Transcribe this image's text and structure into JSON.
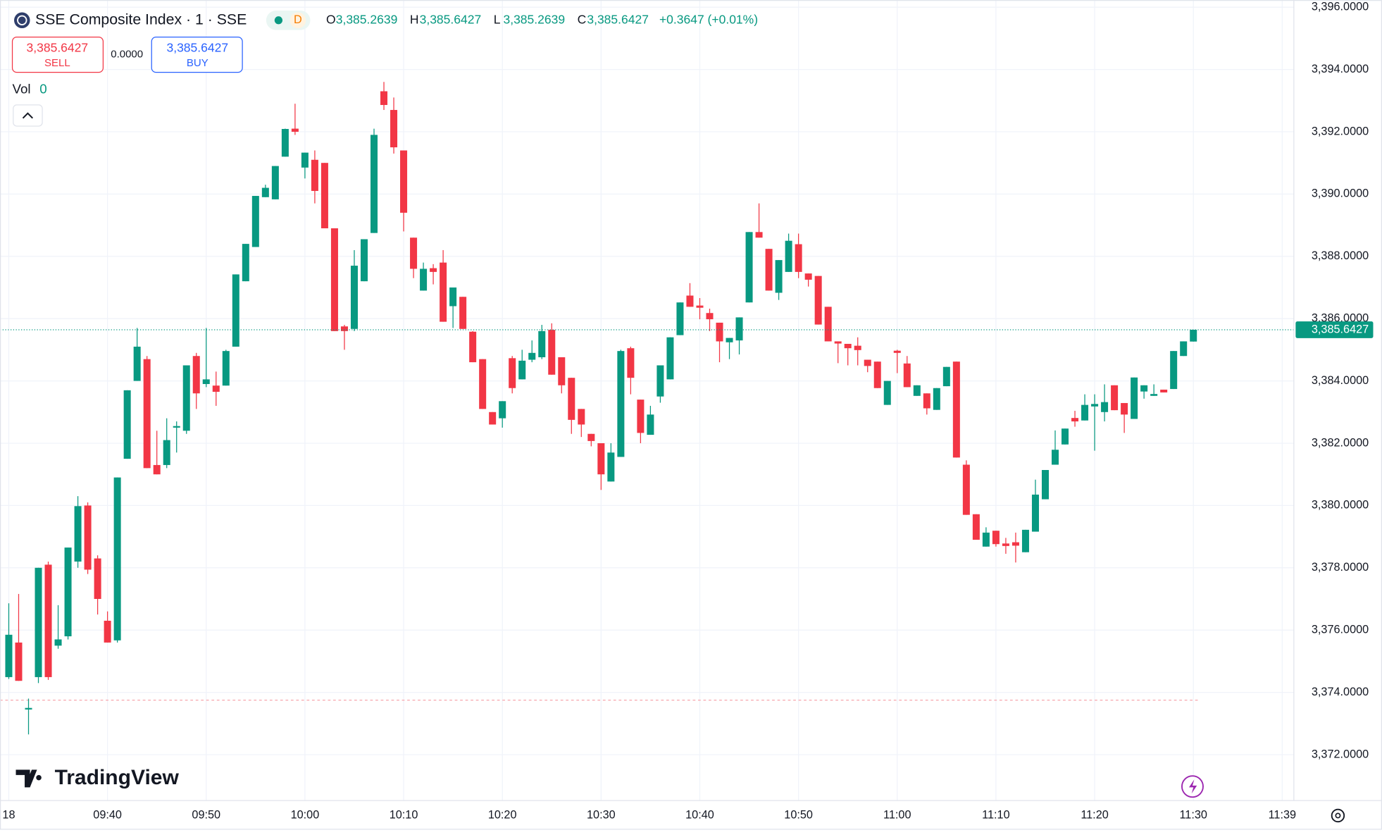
{
  "header": {
    "title": "SSE Composite Index · 1 · SSE",
    "badge": "D",
    "ohlc": [
      {
        "key": "O",
        "value": "3,385.2639"
      },
      {
        "key": "H",
        "value": "3,385.6427"
      },
      {
        "key": "L",
        "value": "3,385.2639"
      },
      {
        "key": "C",
        "value": "3,385.6427"
      }
    ],
    "change": "+0.3647 (+0.01%)"
  },
  "trade": {
    "sell_price": "3,385.6427",
    "sell_label": "SELL",
    "spread": "0.0000",
    "buy_price": "3,385.6427",
    "buy_label": "BUY"
  },
  "volume": {
    "label": "Vol",
    "value": "0"
  },
  "brand": "TradingView",
  "chart_data": {
    "type": "candlestick",
    "up_color": "#089981",
    "down_color": "#f23645",
    "grid": true,
    "xlim": [
      -0.89,
      130.18
    ],
    "ylim": [
      3370.61,
      3396.23
    ],
    "xticks": [
      {
        "value": 0,
        "label": "18"
      },
      {
        "value": 10,
        "label": "09:40"
      },
      {
        "value": 20,
        "label": "09:50"
      },
      {
        "value": 30,
        "label": "10:00"
      },
      {
        "value": 40,
        "label": "10:10"
      },
      {
        "value": 50,
        "label": "10:20"
      },
      {
        "value": 60,
        "label": "10:30"
      },
      {
        "value": 70,
        "label": "10:40"
      },
      {
        "value": 80,
        "label": "10:50"
      },
      {
        "value": 90,
        "label": "11:00"
      },
      {
        "value": 100,
        "label": "11:10"
      },
      {
        "value": 110,
        "label": "11:20"
      },
      {
        "value": 120,
        "label": "11:30"
      },
      {
        "value": 129,
        "label": "11:39"
      }
    ],
    "yticks": [
      {
        "value": 3372,
        "label": "3,372.0000"
      },
      {
        "value": 3374,
        "label": "3,374.0000"
      },
      {
        "value": 3376,
        "label": "3,376.0000"
      },
      {
        "value": 3378,
        "label": "3,378.0000"
      },
      {
        "value": 3380,
        "label": "3,380.0000"
      },
      {
        "value": 3382,
        "label": "3,382.0000"
      },
      {
        "value": 3384,
        "label": "3,384.0000"
      },
      {
        "value": 3386,
        "label": "3,386.0000"
      },
      {
        "value": 3388,
        "label": "3,388.0000"
      },
      {
        "value": 3390,
        "label": "3,390.0000"
      },
      {
        "value": 3392,
        "label": "3,392.0000"
      },
      {
        "value": 3394,
        "label": "3,394.0000"
      },
      {
        "value": 3396,
        "label": "3,396.0000"
      }
    ],
    "last_price": {
      "value": 3385.6427,
      "label": "3,385.6427"
    },
    "reference_line": 3373.75,
    "candles": [
      [
        3374.49,
        3376.86,
        3374.43,
        3375.85
      ],
      [
        3375.6,
        3377.16,
        3374.37,
        3374.37
      ],
      [
        3373.45,
        3373.8,
        3372.65,
        3373.5
      ],
      [
        3374.49,
        3378.0,
        3374.3,
        3378.0
      ],
      [
        3378.1,
        3378.2,
        3374.4,
        3374.49
      ],
      [
        3375.5,
        3376.8,
        3375.4,
        3375.7
      ],
      [
        3375.8,
        3378.65,
        3375.7,
        3378.65
      ],
      [
        3378.2,
        3380.3,
        3378.0,
        3379.98
      ],
      [
        3380.0,
        3380.1,
        3377.8,
        3377.94
      ],
      [
        3378.3,
        3378.4,
        3376.5,
        3377.0
      ],
      [
        3376.3,
        3376.6,
        3375.6,
        3375.6
      ],
      [
        3375.67,
        3380.9,
        3375.6,
        3380.9
      ],
      [
        3381.5,
        3383.7,
        3381.5,
        3383.7
      ],
      [
        3384.0,
        3385.7,
        3384.0,
        3385.1
      ],
      [
        3384.7,
        3384.8,
        3381.2,
        3381.2
      ],
      [
        3381.3,
        3382.4,
        3381.0,
        3381.0
      ],
      [
        3381.3,
        3382.8,
        3381.2,
        3382.1
      ],
      [
        3382.5,
        3382.7,
        3381.7,
        3382.55
      ],
      [
        3382.4,
        3384.5,
        3382.3,
        3384.5
      ],
      [
        3384.8,
        3384.9,
        3383.1,
        3383.6
      ],
      [
        3383.9,
        3385.7,
        3383.8,
        3384.05
      ],
      [
        3383.85,
        3384.3,
        3383.2,
        3383.65
      ],
      [
        3383.85,
        3385.0,
        3383.85,
        3384.96
      ],
      [
        3385.1,
        3387.42,
        3385.1,
        3387.42
      ],
      [
        3387.2,
        3388.4,
        3387.2,
        3388.4
      ],
      [
        3388.3,
        3389.94,
        3388.3,
        3389.94
      ],
      [
        3389.9,
        3390.3,
        3389.9,
        3390.2
      ],
      [
        3389.83,
        3390.9,
        3389.83,
        3390.9
      ],
      [
        3391.2,
        3392.1,
        3391.2,
        3392.09
      ],
      [
        3392.1,
        3392.9,
        3391.9,
        3392.0
      ],
      [
        3390.85,
        3391.33,
        3390.5,
        3391.33
      ],
      [
        3391.1,
        3391.4,
        3389.7,
        3390.1
      ],
      [
        3391.0,
        3391.0,
        3388.9,
        3388.9
      ],
      [
        3388.9,
        3388.9,
        3385.6,
        3385.6
      ],
      [
        3385.75,
        3385.8,
        3385.0,
        3385.6
      ],
      [
        3385.67,
        3388.2,
        3385.6,
        3387.7
      ],
      [
        3387.2,
        3388.55,
        3387.2,
        3388.55
      ],
      [
        3388.75,
        3392.1,
        3388.75,
        3391.9
      ],
      [
        3393.3,
        3393.6,
        3392.7,
        3392.86
      ],
      [
        3392.7,
        3393.1,
        3391.3,
        3391.5
      ],
      [
        3391.4,
        3391.4,
        3388.8,
        3389.4
      ],
      [
        3388.6,
        3388.6,
        3387.3,
        3387.6
      ],
      [
        3386.9,
        3387.8,
        3386.9,
        3387.6
      ],
      [
        3387.62,
        3387.75,
        3387.1,
        3387.5
      ],
      [
        3387.8,
        3388.2,
        3385.9,
        3385.9
      ],
      [
        3386.4,
        3387.0,
        3385.7,
        3387.0
      ],
      [
        3386.7,
        3386.7,
        3385.67,
        3385.67
      ],
      [
        3385.58,
        3385.6,
        3384.6,
        3384.6
      ],
      [
        3384.7,
        3384.7,
        3383.1,
        3383.1
      ],
      [
        3383.0,
        3383.0,
        3382.6,
        3382.6
      ],
      [
        3382.8,
        3383.35,
        3382.5,
        3383.35
      ],
      [
        3384.73,
        3384.8,
        3383.6,
        3383.77
      ],
      [
        3384.05,
        3385.0,
        3384.05,
        3384.65
      ],
      [
        3384.68,
        3385.3,
        3384.6,
        3384.9
      ],
      [
        3384.76,
        3385.8,
        3384.7,
        3385.6
      ],
      [
        3385.64,
        3385.85,
        3384.2,
        3384.2
      ],
      [
        3384.76,
        3384.76,
        3383.6,
        3383.86
      ],
      [
        3384.1,
        3384.1,
        3382.3,
        3382.75
      ],
      [
        3383.1,
        3383.1,
        3382.2,
        3382.6
      ],
      [
        3382.3,
        3382.3,
        3381.9,
        3382.07
      ],
      [
        3382.0,
        3382.0,
        3380.5,
        3381.0
      ],
      [
        3380.77,
        3382.0,
        3380.77,
        3381.7
      ],
      [
        3381.56,
        3385.0,
        3381.56,
        3384.96
      ],
      [
        3385.05,
        3385.1,
        3383.57,
        3384.1
      ],
      [
        3383.4,
        3383.4,
        3382.0,
        3382.33
      ],
      [
        3382.27,
        3383.2,
        3382.27,
        3382.92
      ],
      [
        3383.5,
        3384.5,
        3383.3,
        3384.5
      ],
      [
        3384.05,
        3385.4,
        3384.05,
        3385.4
      ],
      [
        3385.47,
        3386.52,
        3385.47,
        3386.52
      ],
      [
        3386.74,
        3387.14,
        3386.38,
        3386.38
      ],
      [
        3386.42,
        3386.66,
        3385.98,
        3386.35
      ],
      [
        3386.18,
        3386.32,
        3385.6,
        3385.98
      ],
      [
        3385.87,
        3385.87,
        3384.6,
        3385.27
      ],
      [
        3385.24,
        3385.38,
        3384.7,
        3385.38
      ],
      [
        3385.3,
        3386.04,
        3384.85,
        3386.04
      ],
      [
        3386.52,
        3388.78,
        3386.52,
        3388.78
      ],
      [
        3388.78,
        3389.7,
        3388.6,
        3388.6
      ],
      [
        3388.24,
        3388.24,
        3386.9,
        3386.9
      ],
      [
        3386.83,
        3387.88,
        3386.6,
        3387.88
      ],
      [
        3387.5,
        3388.73,
        3387.5,
        3388.5
      ],
      [
        3388.39,
        3388.73,
        3387.3,
        3387.5
      ],
      [
        3387.45,
        3387.45,
        3387.03,
        3387.25
      ],
      [
        3387.37,
        3387.37,
        3385.81,
        3385.81
      ],
      [
        3386.38,
        3386.38,
        3385.27,
        3385.27
      ],
      [
        3385.27,
        3385.27,
        3384.57,
        3385.2
      ],
      [
        3385.19,
        3385.19,
        3384.5,
        3385.05
      ],
      [
        3385.13,
        3385.4,
        3384.5,
        3384.99
      ],
      [
        3384.68,
        3384.68,
        3384.28,
        3384.48
      ],
      [
        3384.62,
        3384.62,
        3383.77,
        3383.77
      ],
      [
        3383.23,
        3384.0,
        3383.23,
        3384.0
      ],
      [
        3384.97,
        3385.0,
        3384.25,
        3384.9
      ],
      [
        3384.56,
        3384.8,
        3383.8,
        3383.8
      ],
      [
        3383.52,
        3383.86,
        3383.52,
        3383.86
      ],
      [
        3383.6,
        3383.6,
        3382.92,
        3383.12
      ],
      [
        3383.07,
        3383.77,
        3383.07,
        3383.77
      ],
      [
        3383.83,
        3384.45,
        3383.83,
        3384.45
      ],
      [
        3384.62,
        3384.62,
        3381.54,
        3381.54
      ],
      [
        3381.31,
        3381.45,
        3379.7,
        3379.7
      ],
      [
        3379.72,
        3379.72,
        3378.9,
        3378.9
      ],
      [
        3378.68,
        3379.3,
        3378.68,
        3379.13
      ],
      [
        3379.19,
        3379.19,
        3378.68,
        3378.76
      ],
      [
        3378.78,
        3378.96,
        3378.45,
        3378.7
      ],
      [
        3378.82,
        3379.13,
        3378.17,
        3378.71
      ],
      [
        3378.5,
        3379.22,
        3378.5,
        3379.22
      ],
      [
        3379.16,
        3380.83,
        3379.16,
        3380.35
      ],
      [
        3380.2,
        3381.14,
        3380.2,
        3381.14
      ],
      [
        3381.31,
        3382.41,
        3381.31,
        3381.79
      ],
      [
        3381.96,
        3382.47,
        3381.96,
        3382.47
      ],
      [
        3382.81,
        3383.04,
        3382.53,
        3382.7
      ],
      [
        3382.73,
        3383.57,
        3382.73,
        3383.23
      ],
      [
        3383.18,
        3383.57,
        3381.76,
        3383.26
      ],
      [
        3383.0,
        3383.89,
        3382.7,
        3383.32
      ],
      [
        3383.86,
        3383.86,
        3383.06,
        3383.06
      ],
      [
        3383.29,
        3383.29,
        3382.33,
        3382.92
      ],
      [
        3382.78,
        3384.11,
        3382.78,
        3384.11
      ],
      [
        3383.66,
        3383.86,
        3383.43,
        3383.86
      ],
      [
        3383.52,
        3383.89,
        3383.52,
        3383.58
      ],
      [
        3383.72,
        3383.72,
        3383.63,
        3383.63
      ],
      [
        3383.74,
        3384.96,
        3383.74,
        3384.96
      ],
      [
        3384.8,
        3385.27,
        3384.8,
        3385.27
      ],
      [
        3385.2639,
        3385.6427,
        3385.2639,
        3385.6427
      ]
    ]
  }
}
